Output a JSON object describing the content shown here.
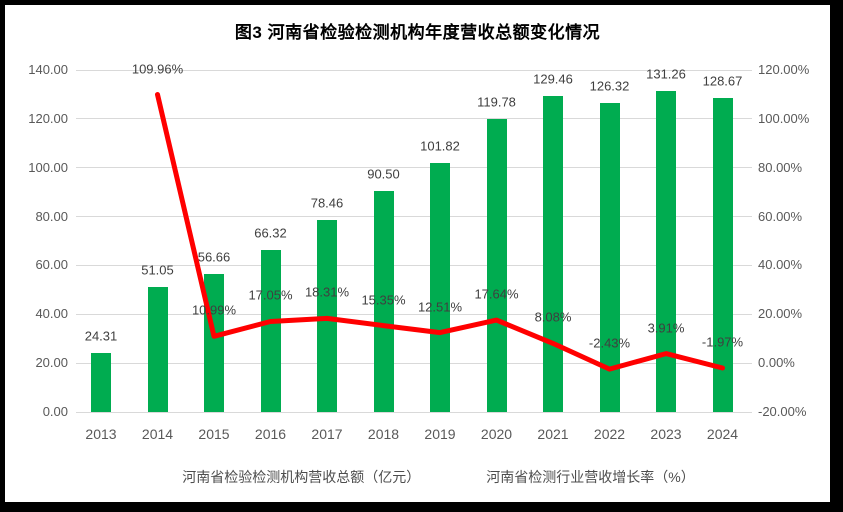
{
  "title": "图3  河南省检验检测机构年度营收总额变化情况",
  "colors": {
    "bar": "#00AC50",
    "line": "#FF0000",
    "gridline": "#d9d9d9",
    "axis_text": "#595959",
    "data_label_text": "#3f3f3f",
    "frame": "#000000",
    "background": "#ffffff"
  },
  "chart_data": {
    "type": "bar",
    "subtype": "bar-line-combo",
    "title": "图3  河南省检验检测机构年度营收总额变化情况",
    "categories": [
      "2013",
      "2014",
      "2015",
      "2016",
      "2017",
      "2018",
      "2019",
      "2020",
      "2021",
      "2022",
      "2023",
      "2024"
    ],
    "series": [
      {
        "name": "河南省检验检测机构营收总额（亿元）",
        "type": "bar",
        "axis": "left",
        "color": "#00AC50",
        "values": [
          24.31,
          51.05,
          56.66,
          66.32,
          78.46,
          90.5,
          101.82,
          119.78,
          129.46,
          126.32,
          131.26,
          128.67
        ],
        "labels": [
          "24.31",
          "51.05",
          "56.66",
          "66.32",
          "78.46",
          "90.50",
          "101.82",
          "119.78",
          "129.46",
          "126.32",
          "131.26",
          "128.67"
        ]
      },
      {
        "name": "河南省检测行业营收增长率（%）",
        "type": "line",
        "axis": "right",
        "color": "#FF0000",
        "values": [
          null,
          109.96,
          10.99,
          17.05,
          18.31,
          15.35,
          12.51,
          17.64,
          8.08,
          -2.43,
          3.91,
          -1.97
        ],
        "labels": [
          "",
          "109.96%",
          "10.99%",
          "17.05%",
          "18.31%",
          "15.35%",
          "12.51%",
          "17.64%",
          "8.08%",
          "-2.43%",
          "3.91%",
          "-1.97%"
        ]
      }
    ],
    "left_axis": {
      "min": 0,
      "max": 140,
      "step": 20,
      "ticks": [
        "0.00",
        "20.00",
        "40.00",
        "60.00",
        "80.00",
        "100.00",
        "120.00",
        "140.00"
      ]
    },
    "right_axis": {
      "min": -20,
      "max": 120,
      "step": 20,
      "ticks": [
        "-20.00%",
        "0.00%",
        "20.00%",
        "40.00%",
        "60.00%",
        "80.00%",
        "100.00%",
        "120.00%"
      ]
    },
    "grid": true,
    "legend_position": "bottom"
  }
}
